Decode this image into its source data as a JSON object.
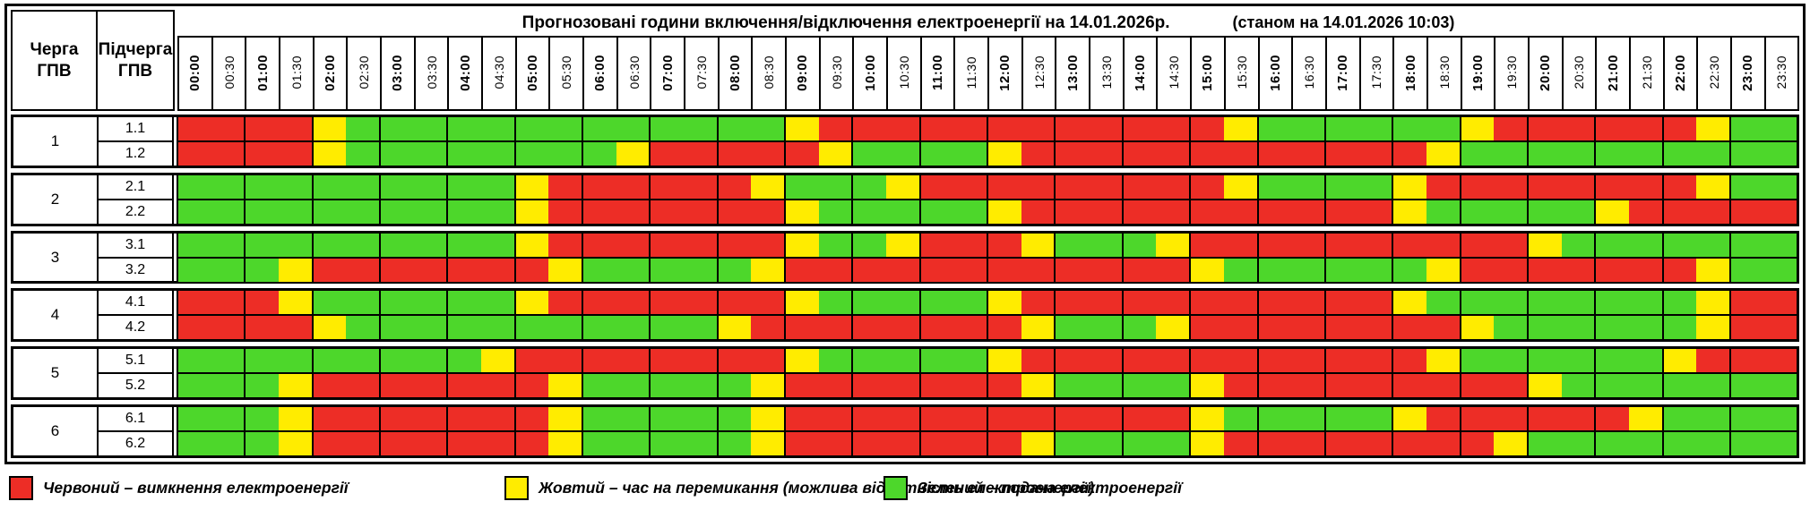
{
  "header": {
    "queue_col": "Черга\nГПВ",
    "subqueue_col": "Підчерга\nГПВ"
  },
  "legend": {
    "items": [
      {
        "state": "R",
        "label": "Червоний – вимкнення електроенергії"
      },
      {
        "state": "Y",
        "label": "Жовтий – час на перемикання (можлива відсутність електроенергії)"
      },
      {
        "state": "G",
        "label": "Зелений – подача електроенергії"
      }
    ]
  },
  "colors": {
    "R": "#ED2D26",
    "Y": "#FFEC00",
    "G": "#4DD72B"
  },
  "chart_data": {
    "type": "heatmap",
    "title": "Прогнозовані години включення/відключення електроенергії на 14.01.2026р.",
    "as_of": "(станом на 14.01.2026 10:03)",
    "x_labels": [
      "00:00",
      "00:30",
      "01:00",
      "01:30",
      "02:00",
      "02:30",
      "03:00",
      "03:30",
      "04:00",
      "04:30",
      "05:00",
      "05:30",
      "06:00",
      "06:30",
      "07:00",
      "07:30",
      "08:00",
      "08:30",
      "09:00",
      "09:30",
      "10:00",
      "10:30",
      "11:00",
      "11:30",
      "12:00",
      "12:30",
      "13:00",
      "13:30",
      "14:00",
      "14:30",
      "15:00",
      "15:30",
      "16:00",
      "16:30",
      "17:00",
      "17:30",
      "18:00",
      "18:30",
      "19:00",
      "19:30",
      "20:00",
      "20:30",
      "21:00",
      "21:30",
      "22:00",
      "22:30",
      "23:00",
      "23:30"
    ],
    "state_meanings": {
      "R": "вимкнення електроенергії",
      "Y": "час на перемикання (можлива відсутність електроенергії)",
      "G": "подача електроенергії"
    },
    "groups": [
      {
        "queue": "1",
        "rows": [
          {
            "subqueue": "1.1",
            "states": "RRRRYGGGGGGGGGGGGGYRRRRRRRRRRRRYGGGGGGYRRRRRRYGG"
          },
          {
            "subqueue": "1.2",
            "states": "RRRRYGGGGGGGGYRRRRRYGGGGYRRRRRRRRRRRRYGGGGGGGGGG"
          }
        ]
      },
      {
        "queue": "2",
        "rows": [
          {
            "subqueue": "2.1",
            "states": "GGGGGGGGGGYRRRRRRYGGGYRRRRRRRRRYGGGGYRRRRRRRRYGG"
          },
          {
            "subqueue": "2.2",
            "states": "GGGGGGGGGGYRRRRRRRYGGGGGYRRRRRRRRRRRYGGGGGYRRRRR"
          }
        ]
      },
      {
        "queue": "3",
        "rows": [
          {
            "subqueue": "3.1",
            "states": "GGGGGGGGGGYRRRRRRRYGGYRRRYGGGYRRRRRRRRRRYGGGGGGG"
          },
          {
            "subqueue": "3.2",
            "states": "GGGYRRRRRRRYGGGGGYRRRRRRRRRRRRYGGGGGGYRRRRRRRYGG"
          }
        ]
      },
      {
        "queue": "4",
        "rows": [
          {
            "subqueue": "4.1",
            "states": "RRRYGGGGGGYRRRRRRRYGGGGGYRRRRRRRRRRRYGGGGGGGGYRR"
          },
          {
            "subqueue": "4.2",
            "states": "RRRRYGGGGGGGGGGGYRRRRRRRRYGGGYRRRRRRRRYGGGGGGYRR"
          }
        ]
      },
      {
        "queue": "5",
        "rows": [
          {
            "subqueue": "5.1",
            "states": "GGGGGGGGGYRRRRRRRRYGGGGGYRRRRRRRRRRRRYGGGGGGYRRR"
          },
          {
            "subqueue": "5.2",
            "states": "GGGYRRRRRRRYGGGGGYRRRRRRRYGGGGYRRRRRRRRRYGGGGGGG"
          }
        ]
      },
      {
        "queue": "6",
        "rows": [
          {
            "subqueue": "6.1",
            "states": "GGGYRRRRRRRYGGGGGYRRRRRRRRRRRRYGGGGGYRRRRRRYGGGG"
          },
          {
            "subqueue": "6.2",
            "states": "GGGYRRRRRRRYGGGGGYRRRRRRRYGGGGYRRRRRRRRYGGGGGGGG"
          }
        ]
      }
    ]
  }
}
